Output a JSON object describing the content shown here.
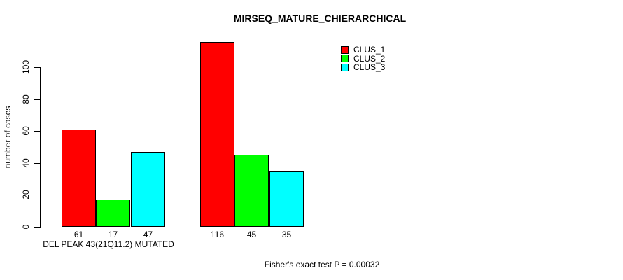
{
  "chart_data": {
    "type": "bar",
    "title": "MIRSEQ_MATURE_CHIERARCHICAL",
    "ylabel": "number of cases",
    "xlabel": "DEL PEAK 43(21Q11.2) MUTATED",
    "footnote": "Fisher's exact test P = 0.00032",
    "y_ticks": [
      0,
      20,
      40,
      60,
      80,
      100
    ],
    "ylim": [
      0,
      116
    ],
    "grid": false,
    "legend_position": "top-right",
    "groups_count": 2,
    "series": [
      {
        "name": "CLUS_1",
        "color": "#ff0000",
        "values": [
          61,
          116
        ]
      },
      {
        "name": "CLUS_2",
        "color": "#00ff00",
        "values": [
          17,
          45
        ]
      },
      {
        "name": "CLUS_3",
        "color": "#00ffff",
        "values": [
          47,
          35
        ]
      }
    ],
    "bar_value_labels": [
      [
        "61",
        "17",
        "47"
      ],
      [
        "116",
        "45",
        "35"
      ]
    ],
    "colors": {
      "background": "#ffffff",
      "axis": "#000000",
      "text": "#000000"
    }
  }
}
